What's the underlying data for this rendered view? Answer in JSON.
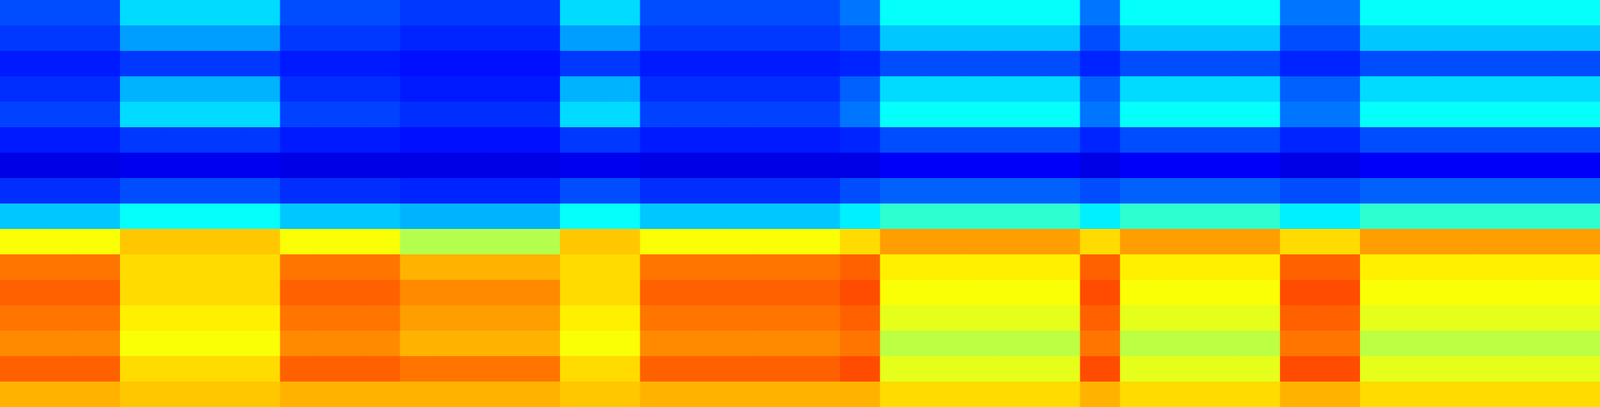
{
  "chart_data": {
    "type": "heatmap",
    "tick_labels": false,
    "zlim": [
      0,
      100
    ],
    "cells": [
      [
        20,
        20,
        20,
        34,
        34,
        34,
        34,
        20,
        20,
        20,
        18,
        18,
        18,
        18,
        34,
        34,
        20,
        20,
        20,
        20,
        20,
        24,
        38,
        38,
        38,
        38,
        38,
        24,
        38,
        38,
        38,
        38,
        24,
        24,
        38,
        38,
        38,
        38,
        38,
        38
      ],
      [
        18,
        18,
        18,
        28,
        28,
        28,
        28,
        18,
        18,
        18,
        16,
        16,
        16,
        16,
        28,
        28,
        18,
        18,
        18,
        18,
        18,
        20,
        32,
        32,
        32,
        32,
        32,
        20,
        32,
        32,
        32,
        32,
        20,
        20,
        32,
        32,
        32,
        32,
        32,
        32
      ],
      [
        15,
        15,
        15,
        18,
        18,
        18,
        18,
        15,
        15,
        15,
        14,
        14,
        14,
        14,
        18,
        18,
        15,
        15,
        15,
        15,
        15,
        16,
        20,
        20,
        20,
        20,
        20,
        16,
        20,
        20,
        20,
        20,
        16,
        16,
        20,
        20,
        20,
        20,
        20,
        20
      ],
      [
        17,
        17,
        17,
        30,
        30,
        30,
        30,
        17,
        17,
        17,
        15,
        15,
        15,
        15,
        30,
        30,
        17,
        17,
        17,
        17,
        17,
        22,
        34,
        34,
        34,
        34,
        34,
        22,
        34,
        34,
        34,
        34,
        22,
        22,
        34,
        34,
        34,
        34,
        34,
        34
      ],
      [
        19,
        19,
        19,
        34,
        34,
        34,
        34,
        19,
        19,
        19,
        17,
        17,
        17,
        17,
        34,
        34,
        19,
        19,
        19,
        19,
        19,
        24,
        38,
        38,
        38,
        38,
        38,
        24,
        38,
        38,
        38,
        38,
        24,
        24,
        38,
        38,
        38,
        38,
        38,
        38
      ],
      [
        15,
        15,
        15,
        18,
        18,
        18,
        18,
        15,
        15,
        15,
        14,
        14,
        14,
        14,
        18,
        18,
        15,
        15,
        15,
        15,
        15,
        16,
        20,
        20,
        20,
        20,
        20,
        16,
        20,
        20,
        20,
        20,
        16,
        16,
        20,
        20,
        20,
        20,
        20,
        20
      ],
      [
        10,
        10,
        10,
        11,
        11,
        11,
        11,
        10,
        10,
        10,
        10,
        10,
        10,
        10,
        11,
        11,
        10,
        10,
        10,
        10,
        10,
        10,
        12,
        12,
        12,
        12,
        12,
        10,
        12,
        12,
        12,
        12,
        10,
        10,
        12,
        12,
        12,
        12,
        12,
        12
      ],
      [
        17,
        17,
        17,
        20,
        20,
        20,
        20,
        17,
        17,
        17,
        16,
        16,
        16,
        16,
        20,
        20,
        17,
        17,
        17,
        17,
        17,
        20,
        22,
        22,
        22,
        22,
        22,
        20,
        22,
        22,
        22,
        22,
        20,
        20,
        22,
        22,
        22,
        22,
        22,
        22
      ],
      [
        32,
        32,
        32,
        38,
        38,
        38,
        38,
        32,
        32,
        32,
        30,
        30,
        30,
        30,
        38,
        38,
        32,
        32,
        32,
        32,
        32,
        36,
        42,
        42,
        42,
        42,
        42,
        36,
        42,
        42,
        42,
        42,
        36,
        36,
        42,
        42,
        42,
        42,
        42,
        42
      ],
      [
        62,
        62,
        62,
        68,
        68,
        68,
        68,
        62,
        62,
        62,
        55,
        55,
        55,
        55,
        68,
        68,
        62,
        62,
        62,
        62,
        62,
        66,
        72,
        72,
        72,
        72,
        72,
        66,
        72,
        72,
        72,
        72,
        66,
        66,
        72,
        72,
        72,
        72,
        72,
        72
      ],
      [
        76,
        76,
        76,
        66,
        66,
        66,
        66,
        76,
        76,
        76,
        70,
        70,
        70,
        70,
        66,
        66,
        76,
        76,
        76,
        76,
        76,
        78,
        64,
        64,
        64,
        64,
        64,
        78,
        64,
        64,
        64,
        64,
        78,
        78,
        64,
        64,
        64,
        64,
        64,
        64
      ],
      [
        78,
        78,
        78,
        66,
        66,
        66,
        66,
        78,
        78,
        78,
        74,
        74,
        74,
        74,
        66,
        66,
        78,
        78,
        78,
        78,
        78,
        80,
        62,
        62,
        62,
        62,
        62,
        80,
        62,
        62,
        62,
        62,
        80,
        80,
        62,
        62,
        62,
        62,
        62,
        62
      ],
      [
        76,
        76,
        76,
        64,
        64,
        64,
        64,
        76,
        76,
        76,
        72,
        72,
        72,
        72,
        64,
        64,
        76,
        76,
        76,
        76,
        76,
        78,
        60,
        60,
        60,
        60,
        60,
        78,
        60,
        60,
        60,
        60,
        78,
        78,
        60,
        60,
        60,
        60,
        60,
        60
      ],
      [
        74,
        74,
        74,
        62,
        62,
        62,
        62,
        74,
        74,
        74,
        70,
        70,
        70,
        70,
        62,
        62,
        74,
        74,
        74,
        74,
        74,
        76,
        56,
        56,
        56,
        56,
        56,
        76,
        56,
        56,
        56,
        56,
        76,
        76,
        56,
        56,
        56,
        56,
        56,
        56
      ],
      [
        78,
        78,
        78,
        66,
        66,
        66,
        66,
        78,
        78,
        78,
        76,
        76,
        76,
        76,
        66,
        66,
        78,
        78,
        78,
        78,
        78,
        80,
        60,
        60,
        60,
        60,
        60,
        80,
        60,
        60,
        60,
        60,
        80,
        80,
        60,
        60,
        60,
        60,
        60,
        60
      ],
      [
        70,
        70,
        70,
        68,
        68,
        68,
        68,
        70,
        70,
        70,
        70,
        70,
        70,
        70,
        68,
        68,
        70,
        70,
        70,
        70,
        70,
        70,
        66,
        66,
        66,
        66,
        66,
        70,
        66,
        66,
        66,
        66,
        70,
        70,
        66,
        66,
        66,
        66,
        66,
        66
      ]
    ]
  }
}
